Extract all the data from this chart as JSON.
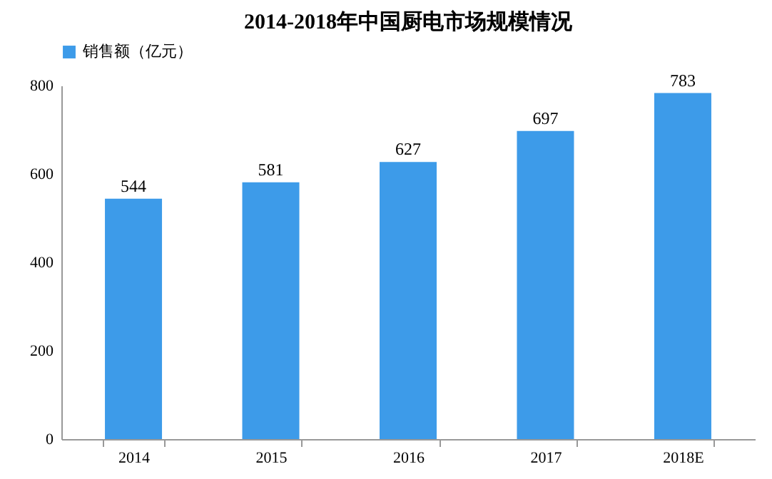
{
  "chart_data": {
    "type": "bar",
    "title": "2014-2018年中国厨电市场规模情况",
    "categories": [
      "2014",
      "2015",
      "2016",
      "2017",
      "2018E"
    ],
    "series": [
      {
        "name": "销售额（亿元）",
        "color": "#3d9be9",
        "values": [
          544,
          581,
          627,
          697,
          783
        ]
      }
    ],
    "ylim": [
      0,
      800
    ],
    "yticks": [
      0,
      200,
      400,
      600,
      800
    ],
    "grid": false,
    "legend": "top",
    "data_labels": true
  }
}
